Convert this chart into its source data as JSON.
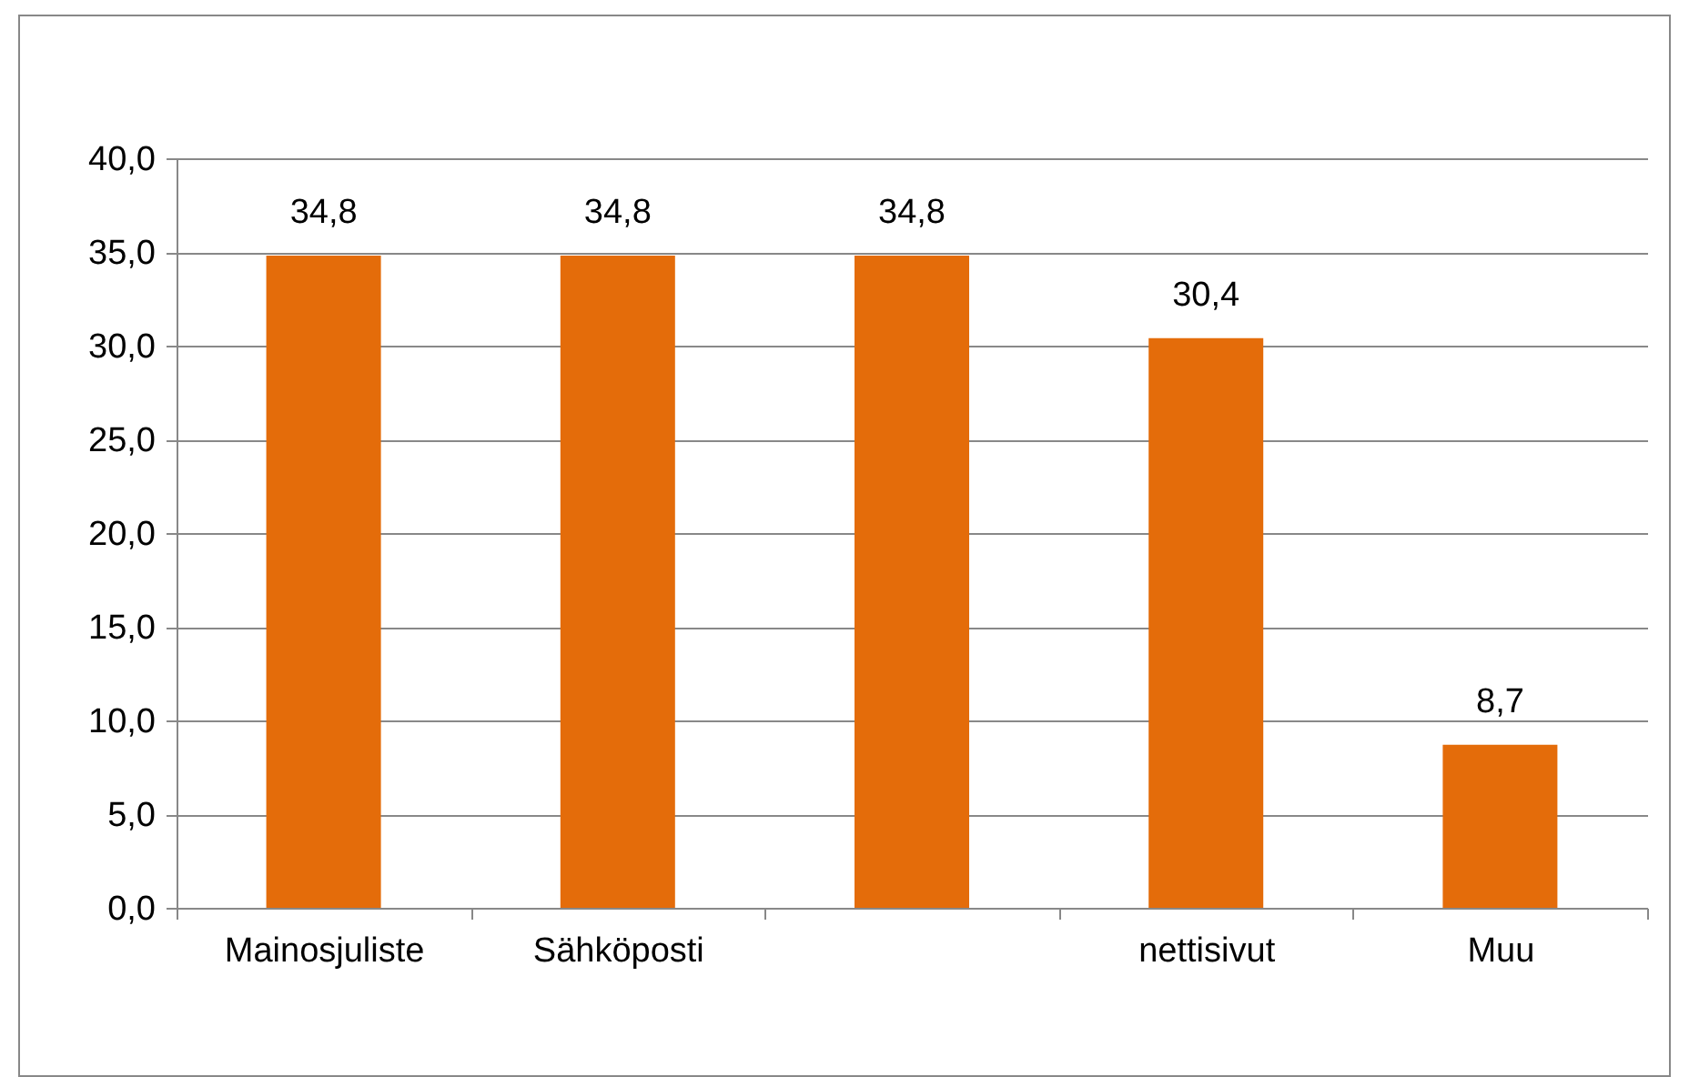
{
  "chart_data": {
    "type": "bar",
    "categories": [
      "Mainosjuliste",
      "Sähköposti",
      null,
      "nettisivut",
      "Muu"
    ],
    "values": [
      34.8,
      34.8,
      34.8,
      30.4,
      8.7
    ],
    "value_labels": [
      "34,8",
      "34,8",
      "34,8",
      "30,4",
      "8,7"
    ],
    "color": "#e46c0a",
    "ylim": [
      0,
      40
    ],
    "yticks": [
      {
        "value": 0,
        "label": "0,0"
      },
      {
        "value": 5,
        "label": "5,0"
      },
      {
        "value": 10,
        "label": "10,0"
      },
      {
        "value": 15,
        "label": "15,0"
      },
      {
        "value": 20,
        "label": "20,0"
      },
      {
        "value": 25,
        "label": "25,0"
      },
      {
        "value": 30,
        "label": "30,0"
      },
      {
        "value": 35,
        "label": "35,0"
      },
      {
        "value": 40,
        "label": "40,0"
      }
    ],
    "grid": "y"
  }
}
